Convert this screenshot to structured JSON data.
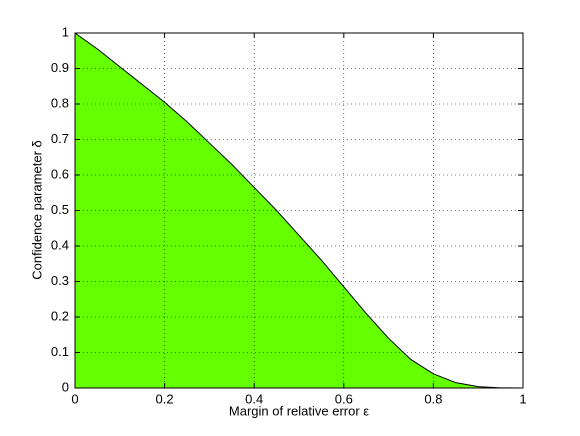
{
  "chart_data": {
    "type": "area",
    "x_label": "Margin of relative error ε",
    "y_label": "Confidence parameter δ",
    "x": [
      0,
      0.05,
      0.1,
      0.15,
      0.2,
      0.25,
      0.3,
      0.35,
      0.4,
      0.45,
      0.5,
      0.55,
      0.6,
      0.65,
      0.7,
      0.75,
      0.8,
      0.85,
      0.9,
      0.95,
      1
    ],
    "values": [
      1,
      0.955,
      0.905,
      0.855,
      0.805,
      0.75,
      0.69,
      0.63,
      0.565,
      0.5,
      0.43,
      0.36,
      0.285,
      0.21,
      0.14,
      0.08,
      0.04,
      0.015,
      0.004,
      0.0005,
      0
    ],
    "color": "#66ff00",
    "line_color": "#000000",
    "xlim": [
      0,
      1
    ],
    "xticks": [
      0,
      0.2,
      0.4,
      0.6,
      0.8,
      1
    ],
    "ylim": [
      0,
      1
    ],
    "yticks": [
      0,
      0.1,
      0.2,
      0.3,
      0.4,
      0.5,
      0.6,
      0.7,
      0.8,
      0.9,
      1
    ],
    "grid": true
  }
}
